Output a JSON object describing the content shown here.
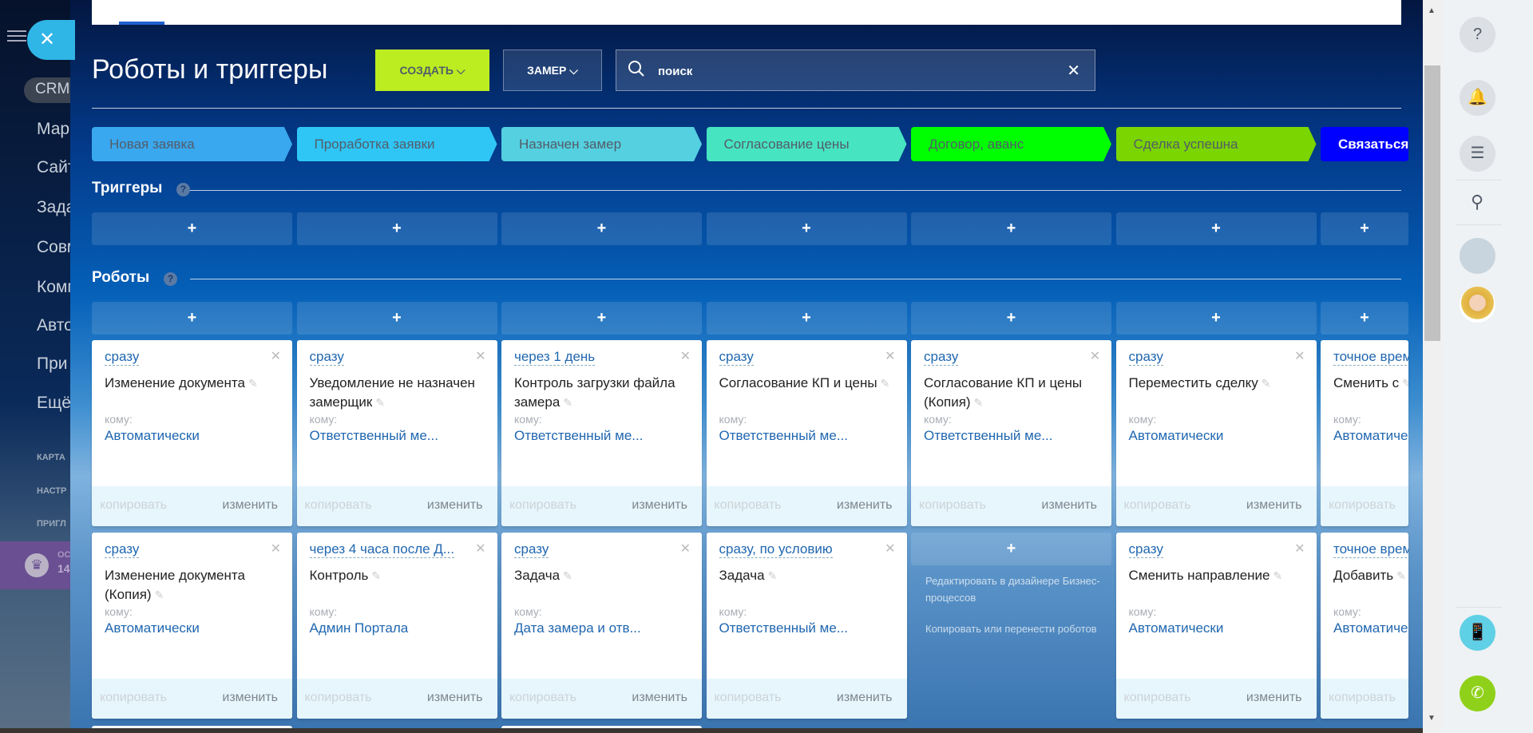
{
  "sidebar": {
    "crm": "CRM",
    "items": [
      "Мар",
      "Сайт",
      "Зада",
      "Совм",
      "Комм",
      "Авто",
      "При",
      "Ещё"
    ],
    "small": [
      "КАРТА",
      "НАСТР",
      "ПРИГЛ"
    ],
    "promo": {
      "line1": "ОС",
      "line2": "14"
    }
  },
  "header": {
    "title": "Роботы и триггеры",
    "create": "СОЗДАТЬ",
    "pipeline": "ЗАМЕР",
    "search_placeholder": "поиск"
  },
  "stages": [
    {
      "label": "Новая заявка",
      "color": "#39a8ef",
      "text": "#535c69"
    },
    {
      "label": "Проработка заявки",
      "color": "#2fc6f6",
      "text": "#535c69"
    },
    {
      "label": "Назначен замер",
      "color": "#55d0e0",
      "text": "#535c69"
    },
    {
      "label": "Согласование цены",
      "color": "#47e4c2",
      "text": "#535c69"
    },
    {
      "label": "Договор, аванс",
      "color": "#00ff00",
      "text": "#535c69"
    },
    {
      "label": "Сделка успешна",
      "color": "#7bd500",
      "text": "#535c69"
    },
    {
      "label": "Связаться",
      "color": "#0000ff",
      "text": "#ffffff"
    }
  ],
  "triggers": {
    "title": "Триггеры",
    "help": "?",
    "add": "+"
  },
  "robots": {
    "title": "Роботы",
    "help": "?",
    "add": "+"
  },
  "card_labels": {
    "to": "кому:",
    "copy": "копировать",
    "edit": "изменить"
  },
  "robot_cards": [
    [
      {
        "delay": "сразу",
        "name": "Изменение документа",
        "to": "Автоматически"
      },
      {
        "delay": "сразу",
        "name": "Уведомление не назначен замерщик",
        "to": "Ответственный ме..."
      },
      {
        "delay": "через 1 день",
        "name": "Контроль загрузки файла замера",
        "to": "Ответственный ме..."
      },
      {
        "delay": "сразу",
        "name": "Согласование КП и цены",
        "to": "Ответственный ме..."
      },
      {
        "delay": "сразу",
        "name": "Согласование КП и цены (Копия)",
        "to": "Ответственный ме..."
      },
      {
        "delay": "сразу",
        "name": "Переместить сделку",
        "to": "Автоматически"
      },
      {
        "delay": "точное время",
        "name": "Сменить с",
        "to": "Автоматически"
      }
    ],
    [
      {
        "delay": "сразу",
        "name": "Изменение документа (Копия)",
        "to": "Автоматически"
      },
      {
        "delay": "через 4 часа после Д...",
        "name": "Контроль",
        "to": "Админ Портала"
      },
      {
        "delay": "сразу",
        "name": "Задача",
        "to": "Дата замера и отв..."
      },
      {
        "delay": "сразу, по условию",
        "name": "Задача",
        "to": "Ответственный ме..."
      },
      null,
      {
        "delay": "сразу",
        "name": "Сменить направление",
        "to": "Автоматически"
      },
      {
        "delay": "точное время",
        "name": "Добавить",
        "to": "Автоматически"
      }
    ]
  ],
  "empty_cell": {
    "plus": "+",
    "designer": "Редактировать в дизайнере Бизнес-процессов",
    "copy_move": "Копировать или перенести роботов"
  },
  "right_panel": {
    "icons": [
      "help-icon",
      "bell-icon",
      "chat-icon",
      "search-icon"
    ]
  }
}
